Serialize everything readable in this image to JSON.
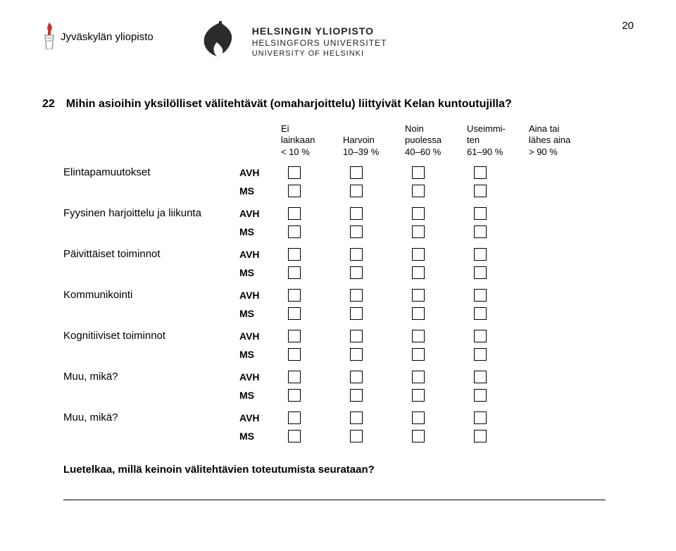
{
  "page_number": "20",
  "header": {
    "jyu": "Jyväskylän yliopisto",
    "hel_line1": "HELSINGIN YLIOPISTO",
    "hel_line2": "HELSINGFORS UNIVERSITET",
    "hel_line3": "UNIVERSITY OF HELSINKI"
  },
  "question": {
    "number": "22",
    "text": "Mihin asioihin yksilölliset välitehtävät (omaharjoittelu) liittyivät Kelan kuntoutujilla?"
  },
  "columns": [
    "Ei\nlainkaan\n< 10 %",
    "Harvoin\n10–39 %",
    "Noin\npuolessa\n40–60 %",
    "Useimmi-\nten\n61–90 %",
    "Aina tai\nlähes aina\n> 90 %"
  ],
  "subtypes": [
    "AVH",
    "MS"
  ],
  "rows": [
    "Elintapamuutokset",
    "Fyysinen harjoittelu ja liikunta",
    "Päivittäiset toiminnot",
    "Kommunikointi",
    "Kognitiiviset toiminnot",
    "Muu, mikä?",
    "Muu, mikä?"
  ],
  "followup": "Luetelkaa, millä keinoin välitehtävien toteutumista seurataan?",
  "colors": {
    "text": "#000000",
    "background": "#ffffff",
    "torch": "#c4362e",
    "logo_dark": "#2b2b2b"
  }
}
